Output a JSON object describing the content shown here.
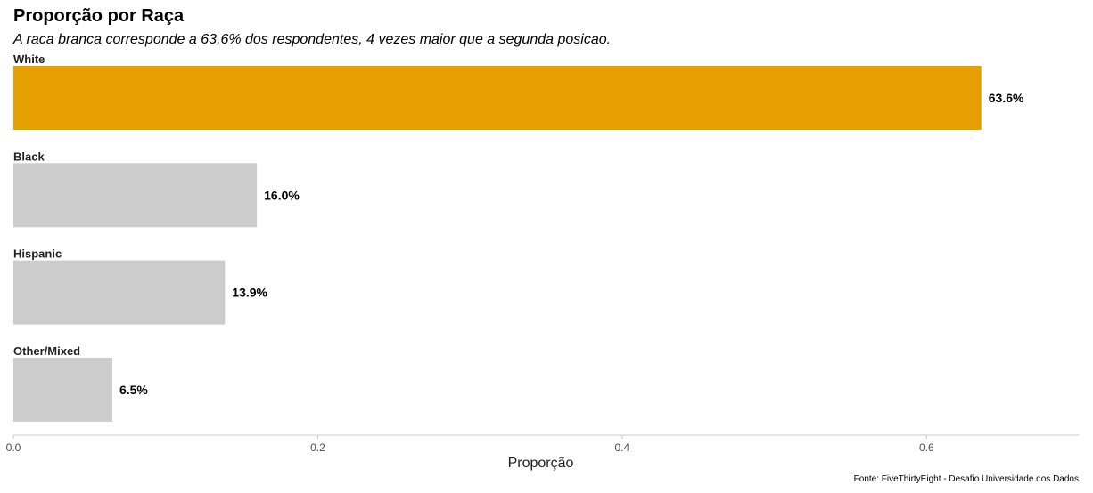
{
  "chart_data": {
    "type": "bar",
    "orientation": "horizontal",
    "title": "Proporção por Raça",
    "subtitle": "A raca branca corresponde a 63,6% dos respondentes, 4 vezes maior que a segunda posicao.",
    "categories": [
      "White",
      "Black",
      "Hispanic",
      "Other/Mixed"
    ],
    "values": [
      0.636,
      0.16,
      0.139,
      0.065
    ],
    "data_labels": [
      "63.6%",
      "16.0%",
      "13.9%",
      "6.5%"
    ],
    "xlabel": "Proporção",
    "ylabel": "",
    "xlim": [
      0,
      0.7
    ],
    "x_ticks": [
      0.0,
      0.2,
      0.4,
      0.6
    ],
    "x_tick_labels": [
      "0.0",
      "0.2",
      "0.4",
      "0.6"
    ],
    "grid": false,
    "legend": "none",
    "caption": "Fonte: FiveThirtyEight - Desafio Universidade dos Dados",
    "colors": {
      "highlight": "#E69F00",
      "other": "#CCCCCC",
      "axis_line": "#C8C8C8",
      "tick_text": "#4D4D4D"
    }
  }
}
